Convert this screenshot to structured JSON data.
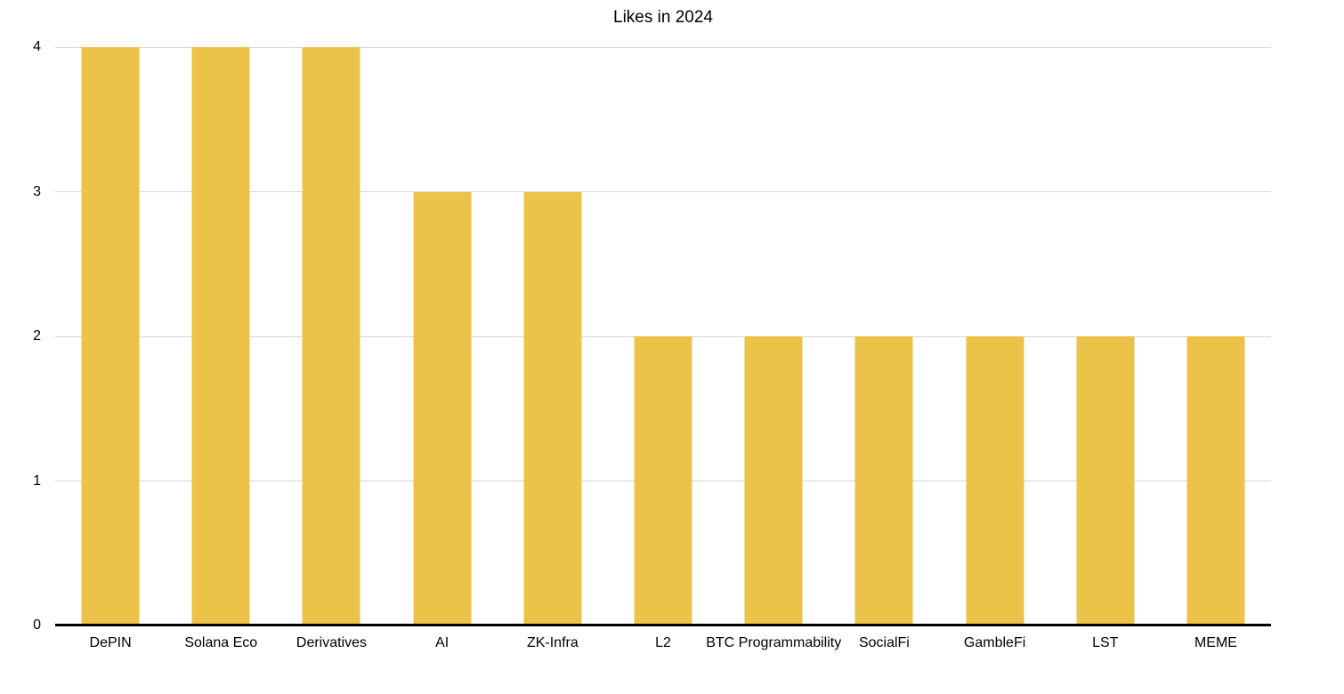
{
  "title": "Likes in 2024",
  "chart_data": {
    "type": "bar",
    "title": "Likes in 2024",
    "categories": [
      "DePIN",
      "Solana Eco",
      "Derivatives",
      "AI",
      "ZK-Infra",
      "L2",
      "BTC Programmability",
      "SocialFi",
      "GambleFi",
      "LST",
      "MEME"
    ],
    "values": [
      4,
      4,
      4,
      3,
      3,
      2,
      2,
      2,
      2,
      2,
      2
    ],
    "xlabel": "",
    "ylabel": "",
    "ylim": [
      0,
      4
    ],
    "yticks": [
      0,
      1,
      2,
      3,
      4
    ],
    "grid": true,
    "legend": false,
    "colors": {
      "bar": "#ECC348",
      "gridline": "#D6D6D6",
      "axis_line": "#000000",
      "text": "#000000",
      "background": "#FFFFFF"
    }
  }
}
